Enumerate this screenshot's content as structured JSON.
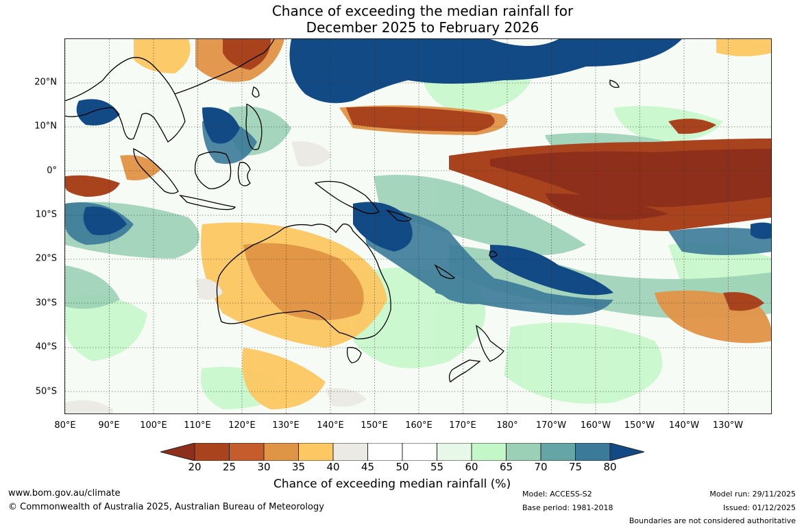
{
  "title": {
    "line1": "Chance of exceeding the median rainfall for",
    "line2": "December 2025 to February 2026"
  },
  "map": {
    "lat_labels": [
      "20°N",
      "10°N",
      "0°",
      "10°S",
      "20°S",
      "30°S",
      "40°S",
      "50°S"
    ],
    "lon_labels": [
      "80°E",
      "90°E",
      "100°E",
      "110°E",
      "120°E",
      "130°E",
      "140°E",
      "150°E",
      "160°E",
      "170°E",
      "180°",
      "170°W",
      "160°W",
      "150°W",
      "140°W",
      "130°W"
    ]
  },
  "legend": {
    "label": "Chance of exceeding median rainfall (%)",
    "ticks": [
      "20",
      "25",
      "30",
      "35",
      "40",
      "45",
      "50",
      "55",
      "60",
      "65",
      "70",
      "75",
      "80"
    ],
    "colors": {
      "under": "#8e2f1b",
      "bins": [
        "#a8431e",
        "#c45d2b",
        "#e09446",
        "#fdc762",
        "#eceae4",
        "#ffffff",
        "#ffffff",
        "#e8f8e8",
        "#c3f7c7",
        "#9bd0b6",
        "#65a5a6",
        "#3b7a98"
      ],
      "over": "#124a85"
    }
  },
  "footer": {
    "url": "www.bom.gov.au/climate",
    "copyright": "© Commonwealth of Australia 2025, Australian Bureau of Meteorology",
    "model": "Model: ACCESS-S2",
    "base_period": "Base period: 1981-2018",
    "model_run": "Model run: 29/11/2025",
    "issued": "Issued: 01/12/2025",
    "disclaimer": "Boundaries are not considered authoritative"
  }
}
